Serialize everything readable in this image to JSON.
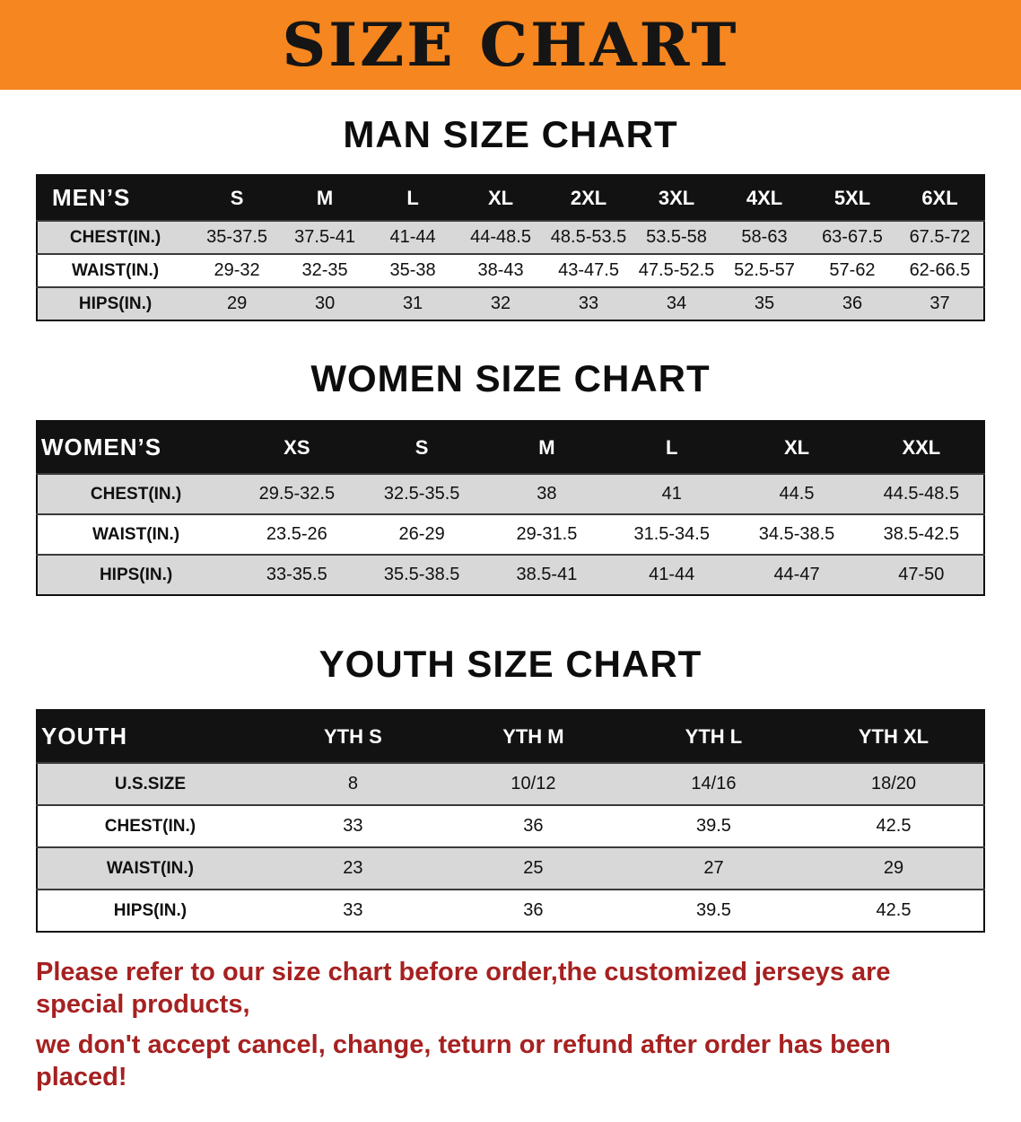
{
  "banner": {
    "title": "SIZE CHART"
  },
  "colors": {
    "banner_bg": "#f6861f",
    "table_header_bg": "#121212",
    "row_alt_bg": "#d8d8d8",
    "notice_text": "#a62121"
  },
  "men": {
    "heading": "MAN SIZE CHART",
    "table": {
      "header": [
        "MEN’S",
        "S",
        "M",
        "L",
        "XL",
        "2XL",
        "3XL",
        "4XL",
        "5XL",
        "6XL"
      ],
      "rows": [
        [
          "CHEST(IN.)",
          "35-37.5",
          "37.5-41",
          "41-44",
          "44-48.5",
          "48.5-53.5",
          "53.5-58",
          "58-63",
          "63-67.5",
          "67.5-72"
        ],
        [
          "WAIST(IN.)",
          "29-32",
          "32-35",
          "35-38",
          "38-43",
          "43-47.5",
          "47.5-52.5",
          "52.5-57",
          "57-62",
          "62-66.5"
        ],
        [
          "HIPS(IN.)",
          "29",
          "30",
          "31",
          "32",
          "33",
          "34",
          "35",
          "36",
          "37"
        ]
      ]
    }
  },
  "women": {
    "heading": "WOMEN SIZE CHART",
    "table": {
      "header": [
        "WOMEN’S",
        "XS",
        "S",
        "M",
        "L",
        "XL",
        "XXL"
      ],
      "rows": [
        [
          "CHEST(IN.)",
          "29.5-32.5",
          "32.5-35.5",
          "38",
          "41",
          "44.5",
          "44.5-48.5"
        ],
        [
          "WAIST(IN.)",
          "23.5-26",
          "26-29",
          "29-31.5",
          "31.5-34.5",
          "34.5-38.5",
          "38.5-42.5"
        ],
        [
          "HIPS(IN.)",
          "33-35.5",
          "35.5-38.5",
          "38.5-41",
          "41-44",
          "44-47",
          "47-50"
        ]
      ]
    }
  },
  "youth": {
    "heading": "YOUTH SIZE CHART",
    "table": {
      "header": [
        "YOUTH",
        "YTH S",
        "YTH M",
        "YTH L",
        "YTH XL"
      ],
      "rows": [
        [
          "U.S.SIZE",
          "8",
          "10/12",
          "14/16",
          "18/20"
        ],
        [
          "CHEST(IN.)",
          "33",
          "36",
          "39.5",
          "42.5"
        ],
        [
          "WAIST(IN.)",
          "23",
          "25",
          "27",
          "29"
        ],
        [
          "HIPS(IN.)",
          "33",
          "36",
          "39.5",
          "42.5"
        ]
      ]
    }
  },
  "footer": {
    "line1": "Please refer to our size chart before order,the customized jerseys are special products,",
    "line2": "we don't accept cancel, change, teturn or refund after order has been placed!"
  }
}
